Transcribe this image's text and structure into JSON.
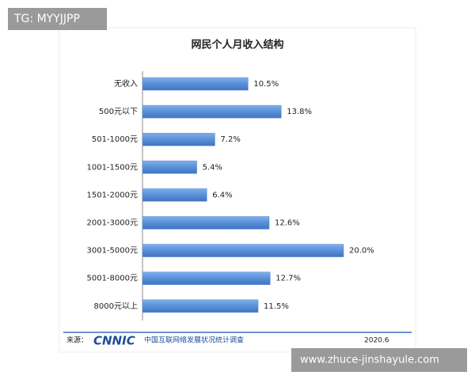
{
  "chart_data": {
    "type": "bar",
    "orientation": "horizontal",
    "title": "网民个人月收入结构",
    "categories": [
      "无收入",
      "500元以下",
      "501-1000元",
      "1001-1500元",
      "1501-2000元",
      "2001-3000元",
      "3001-5000元",
      "5001-8000元",
      "8000元以上"
    ],
    "values": [
      10.5,
      13.8,
      7.2,
      5.4,
      6.4,
      12.6,
      20.0,
      12.7,
      11.5
    ],
    "value_labels": [
      "10.5%",
      "13.8%",
      "7.2%",
      "5.4%",
      "6.4%",
      "12.6%",
      "20.0%",
      "12.7%",
      "11.5%"
    ],
    "color": "#5a8fd8"
  },
  "overlay_tag": "TG: MYYJJPP",
  "footer": {
    "source_label": "来源：",
    "logo": "CNNIC",
    "survey": "中国互联网络发展状况统计调查",
    "date": "2020.6"
  },
  "watermark_url": "www.zhuce-jinshayule.com"
}
